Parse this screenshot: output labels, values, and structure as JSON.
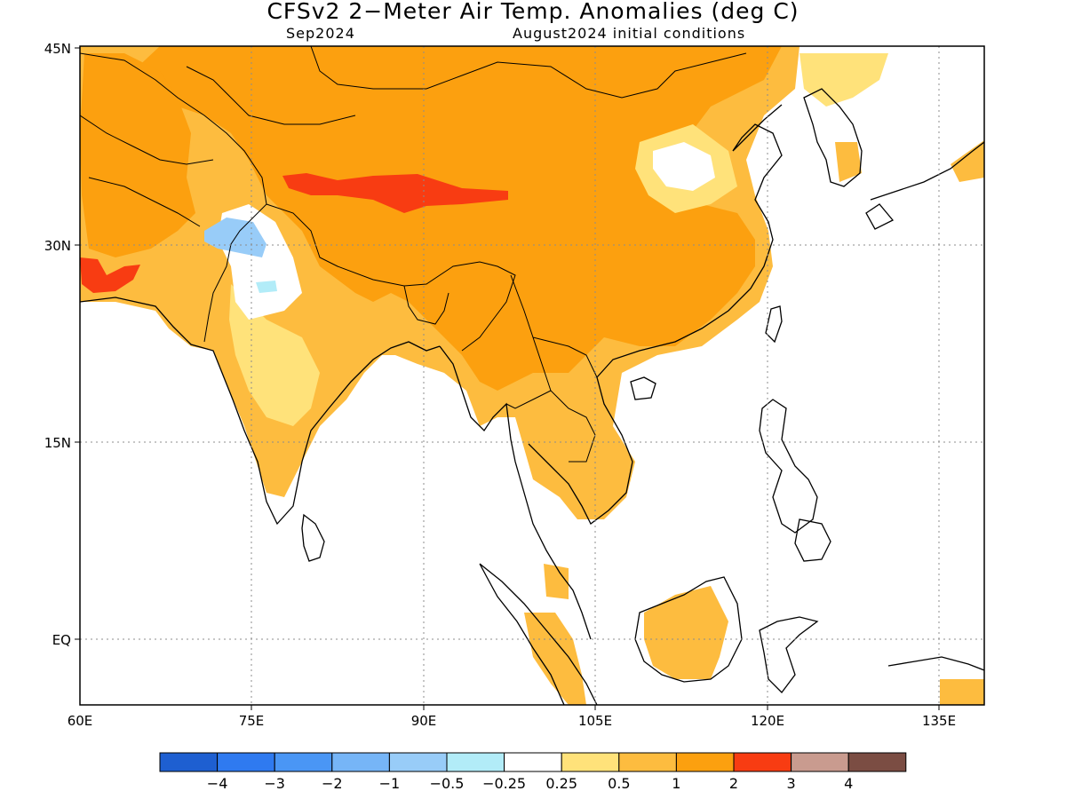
{
  "title": "CFSv2 2−Meter Air Temp. Anomalies (deg C)",
  "subtitle_left": "Sep2024",
  "subtitle_right": "August2024 initial conditions",
  "axes": {
    "lat_labels": [
      "45N",
      "30N",
      "15N",
      "EQ"
    ],
    "lon_labels": [
      "60E",
      "75E",
      "90E",
      "105E",
      "120E",
      "135E"
    ],
    "lon_range": [
      60,
      140
    ],
    "lat_range": [
      -5,
      45
    ]
  },
  "legend": {
    "colors": [
      "#1e5fd1",
      "#2f7af0",
      "#4a96f5",
      "#76b5f7",
      "#98ccf8",
      "#b2ecf8",
      "#ffffff",
      "#ffe27a",
      "#fdbc3f",
      "#fca00f",
      "#f83c12",
      "#c99b8f",
      "#7b4d43"
    ],
    "labels": [
      "−4",
      "−3",
      "−2",
      "−1",
      "−0.5",
      "−0.25",
      "0.25",
      "0.5",
      "1",
      "2",
      "3",
      "4"
    ]
  },
  "palette": {
    "orange": "#fca00f",
    "light_orange": "#fdbc3f",
    "yellow": "#ffe27a",
    "red": "#f83c12",
    "blue": "#76b5f7",
    "light_blue": "#b2ecf8",
    "coast": "#000000"
  }
}
